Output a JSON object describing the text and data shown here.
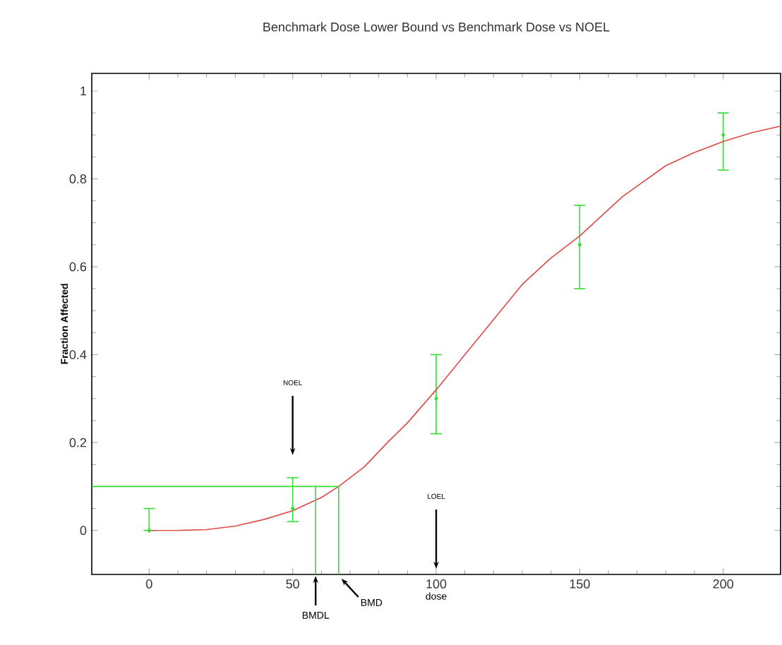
{
  "chart_data": {
    "type": "line",
    "title": "Benchmark Dose Lower Bound vs Benchmark Dose vs NOEL",
    "xlabel": "dose",
    "ylabel": "Fraction Affected",
    "xlim": [
      -20,
      220
    ],
    "ylim": [
      -0.1,
      1.04
    ],
    "xticks": [
      0,
      50,
      100,
      150,
      200
    ],
    "yticks": [
      0,
      0.2,
      0.4,
      0.6,
      0.8,
      1
    ],
    "grid": false,
    "series": [
      {
        "type": "scatter",
        "marker": "diamond",
        "color": "#33dd33",
        "x": [
          0,
          50,
          100,
          150,
          200
        ],
        "values": [
          0,
          0.05,
          0.3,
          0.65,
          0.9
        ],
        "errors": [
          [
            0,
            0.05
          ],
          [
            0.02,
            0.12
          ],
          [
            0.22,
            0.4
          ],
          [
            0.55,
            0.74
          ],
          [
            0.82,
            0.95
          ]
        ]
      },
      {
        "color": "#e04848",
        "x": [
          0,
          10,
          20,
          30,
          40,
          50,
          55,
          60,
          66,
          75,
          83,
          90,
          100,
          110,
          115,
          125,
          130,
          140,
          150,
          165,
          180,
          190,
          200,
          210,
          220
        ],
        "values": [
          0,
          0,
          0.002,
          0.01,
          0.025,
          0.045,
          0.06,
          0.075,
          0.1,
          0.145,
          0.2,
          0.245,
          0.32,
          0.4,
          0.44,
          0.52,
          0.56,
          0.62,
          0.67,
          0.76,
          0.83,
          0.86,
          0.885,
          0.905,
          0.92
        ]
      },
      {
        "color": "#33dd33",
        "x": [
          -20,
          66,
          66
        ],
        "values": [
          0.1,
          0.1,
          -0.1
        ]
      },
      {
        "color": "#33dd33",
        "x": [
          58,
          58
        ],
        "values": [
          0.1,
          -0.1
        ]
      }
    ],
    "annotations": [
      "NOEL",
      "LOEL",
      {
        "text": "BMDL",
        "x": 58,
        "y": -0.1
      },
      {
        "text": "BMD",
        "x": 66,
        "y": -0.1
      }
    ]
  }
}
